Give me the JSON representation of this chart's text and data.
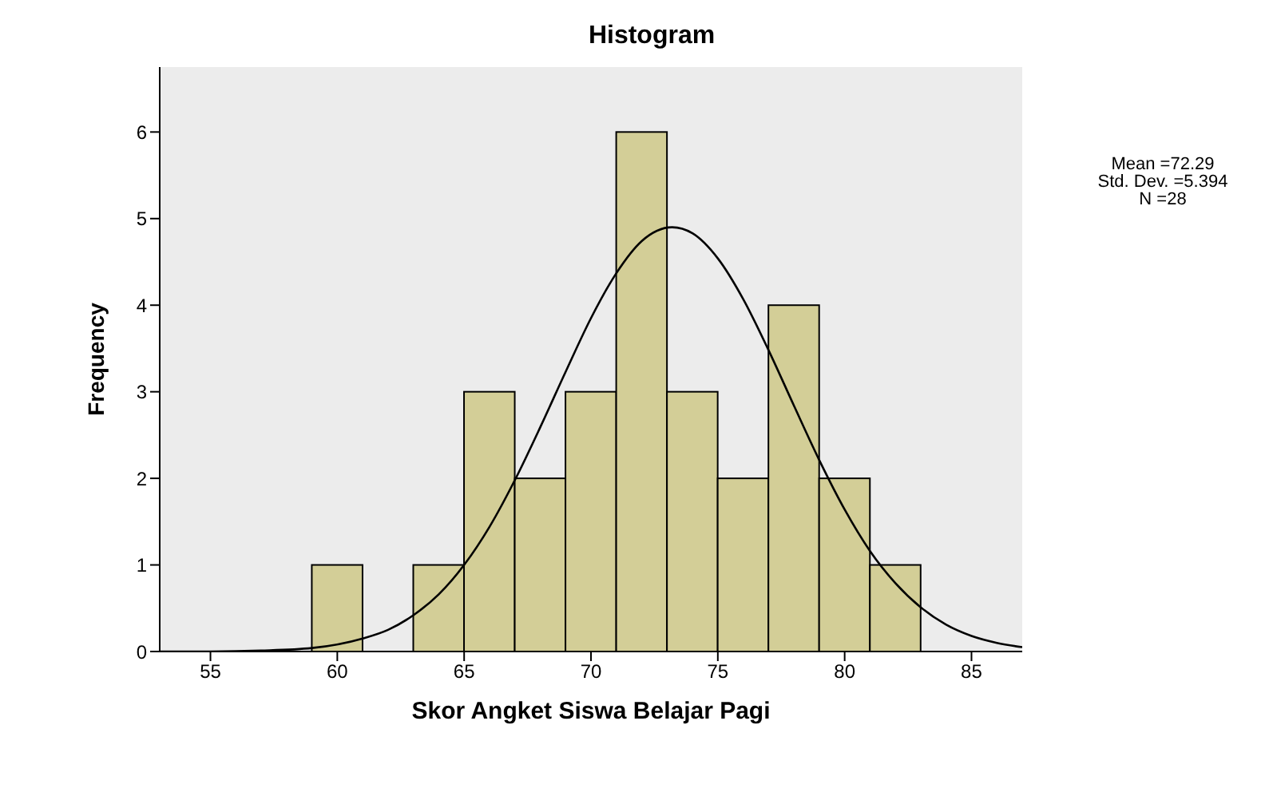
{
  "chart_data": {
    "type": "histogram",
    "title": "Histogram",
    "xlabel": "Skor Angket Siswa Belajar Pagi",
    "ylabel": "Frequency",
    "bins": [
      59,
      61,
      63,
      65,
      67,
      69,
      71,
      73,
      75,
      77,
      79,
      81,
      83
    ],
    "values": [
      1,
      0,
      1,
      3,
      2,
      3,
      6,
      3,
      2,
      4,
      2,
      1
    ],
    "color": "#d3ce97",
    "series": [
      {
        "type": "line",
        "color": "#000000",
        "x": [
          53,
          55,
          57,
          59,
          61,
          62,
          63,
          64,
          65,
          66,
          67,
          68,
          69,
          70,
          71,
          72,
          73.2,
          74,
          75,
          76,
          77,
          78,
          79,
          80,
          81,
          82,
          83,
          84,
          85,
          86,
          87
        ],
        "values": [
          0,
          0,
          0.01,
          0.04,
          0.15,
          0.25,
          0.42,
          0.66,
          1,
          1.44,
          1.98,
          2.59,
          3.23,
          3.85,
          4.37,
          4.74,
          4.9,
          4.83,
          4.54,
          4.07,
          3.48,
          2.84,
          2.21,
          1.64,
          1.16,
          0.79,
          0.51,
          0.31,
          0.18,
          0.1,
          0.05
        ]
      }
    ],
    "xlim": [
      53,
      87
    ],
    "xticks": [
      55,
      60,
      65,
      70,
      75,
      80,
      85
    ],
    "ylim": [
      0,
      6.75
    ],
    "yticks": [
      0,
      1,
      2,
      3,
      4,
      5,
      6
    ],
    "marker": "none",
    "line_style": "solid",
    "annotations": [
      "Mean =72.29",
      "Std. Dev. =5.394",
      "N =28"
    ]
  }
}
